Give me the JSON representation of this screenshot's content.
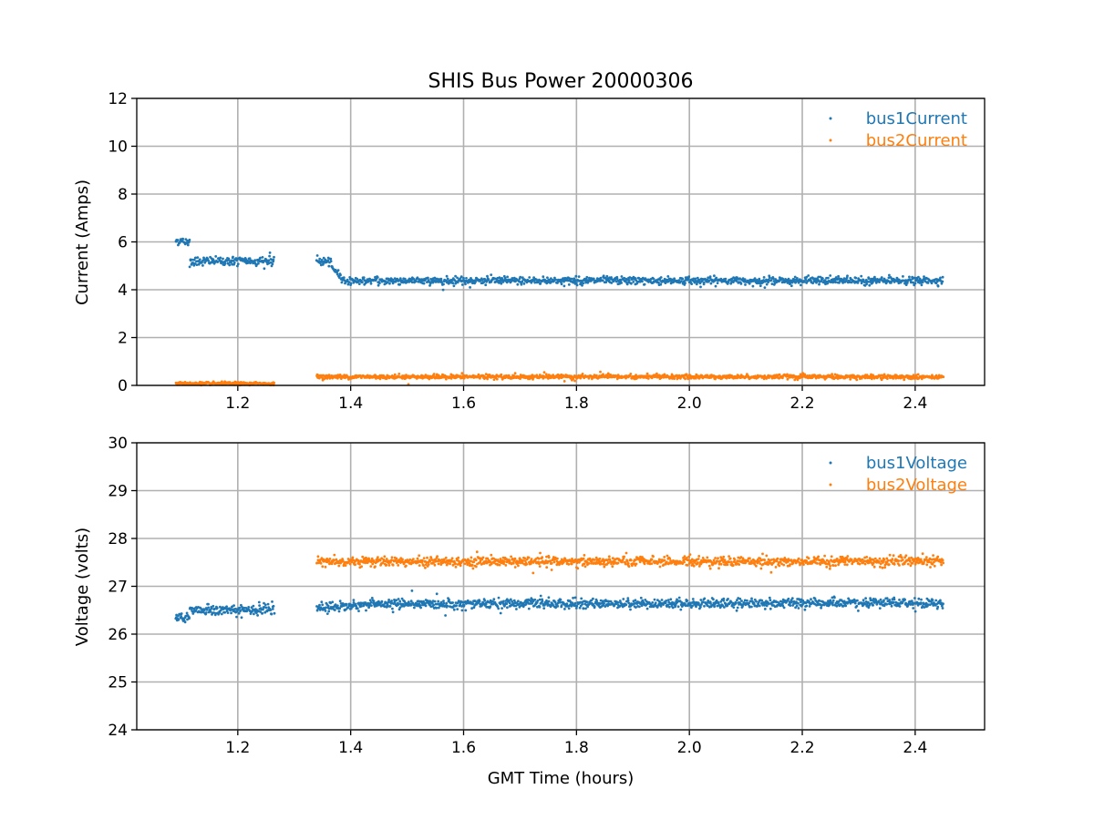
{
  "chart_data": [
    {
      "type": "scatter",
      "title": "SHIS Bus Power 20000306",
      "xlabel": "",
      "ylabel": "Current (Amps)",
      "xlim": [
        1.021,
        2.523
      ],
      "ylim": [
        0,
        12
      ],
      "xticks": [
        1.2,
        1.4,
        1.6,
        1.8,
        2.0,
        2.2,
        2.4
      ],
      "xtick_labels": [
        "1.2",
        "1.4",
        "1.6",
        "1.8",
        "2.0",
        "2.2",
        "2.4"
      ],
      "yticks": [
        0,
        2,
        4,
        6,
        8,
        10,
        12
      ],
      "ytick_labels": [
        "0",
        "2",
        "4",
        "6",
        "8",
        "10",
        "12"
      ],
      "grid": true,
      "legend_position": "top-right",
      "series": [
        {
          "name": "bus1Current",
          "color": "#1f77b4",
          "segments": [
            {
              "x": [
                1.09,
                1.115
              ],
              "y": [
                6.05,
                6.0
              ],
              "noise": 0.12
            },
            {
              "x": [
                1.115,
                1.265
              ],
              "y": [
                5.2,
                5.2
              ],
              "noise": 0.13
            },
            {
              "x": [
                1.34,
                1.365
              ],
              "y": [
                5.2,
                5.15
              ],
              "noise": 0.12
            },
            {
              "x": [
                1.365,
                1.39
              ],
              "y": [
                5.0,
                4.35
              ],
              "noise": 0.1
            },
            {
              "x": [
                1.39,
                2.45
              ],
              "y": [
                4.38,
                4.38
              ],
              "noise": 0.11
            }
          ]
        },
        {
          "name": "bus2Current",
          "color": "#ff7f0e",
          "segments": [
            {
              "x": [
                1.09,
                1.265
              ],
              "y": [
                0.08,
                0.08
              ],
              "noise": 0.04
            },
            {
              "x": [
                1.34,
                2.45
              ],
              "y": [
                0.36,
                0.36
              ],
              "noise": 0.06
            }
          ]
        }
      ]
    },
    {
      "type": "scatter",
      "title": "",
      "xlabel": "GMT Time (hours)",
      "ylabel": "Voltage (volts)",
      "xlim": [
        1.021,
        2.523
      ],
      "ylim": [
        24,
        30
      ],
      "xticks": [
        1.2,
        1.4,
        1.6,
        1.8,
        2.0,
        2.2,
        2.4
      ],
      "xtick_labels": [
        "1.2",
        "1.4",
        "1.6",
        "1.8",
        "2.0",
        "2.2",
        "2.4"
      ],
      "yticks": [
        24,
        25,
        26,
        27,
        28,
        29,
        30
      ],
      "ytick_labels": [
        "24",
        "25",
        "26",
        "27",
        "28",
        "29",
        "30"
      ],
      "grid": true,
      "legend_position": "top-right",
      "series": [
        {
          "name": "bus1Voltage",
          "color": "#1f77b4",
          "segments": [
            {
              "x": [
                1.09,
                1.115
              ],
              "y": [
                26.35,
                26.35
              ],
              "noise": 0.08
            },
            {
              "x": [
                1.115,
                1.265
              ],
              "y": [
                26.5,
                26.5
              ],
              "noise": 0.08
            },
            {
              "x": [
                1.34,
                1.45
              ],
              "y": [
                26.55,
                26.63
              ],
              "noise": 0.07
            },
            {
              "x": [
                1.45,
                2.45
              ],
              "y": [
                26.63,
                26.65
              ],
              "noise": 0.07
            }
          ]
        },
        {
          "name": "bus2Voltage",
          "color": "#ff7f0e",
          "segments": [
            {
              "x": [
                1.34,
                2.45
              ],
              "y": [
                27.52,
                27.52
              ],
              "noise": 0.07
            }
          ]
        }
      ]
    }
  ]
}
